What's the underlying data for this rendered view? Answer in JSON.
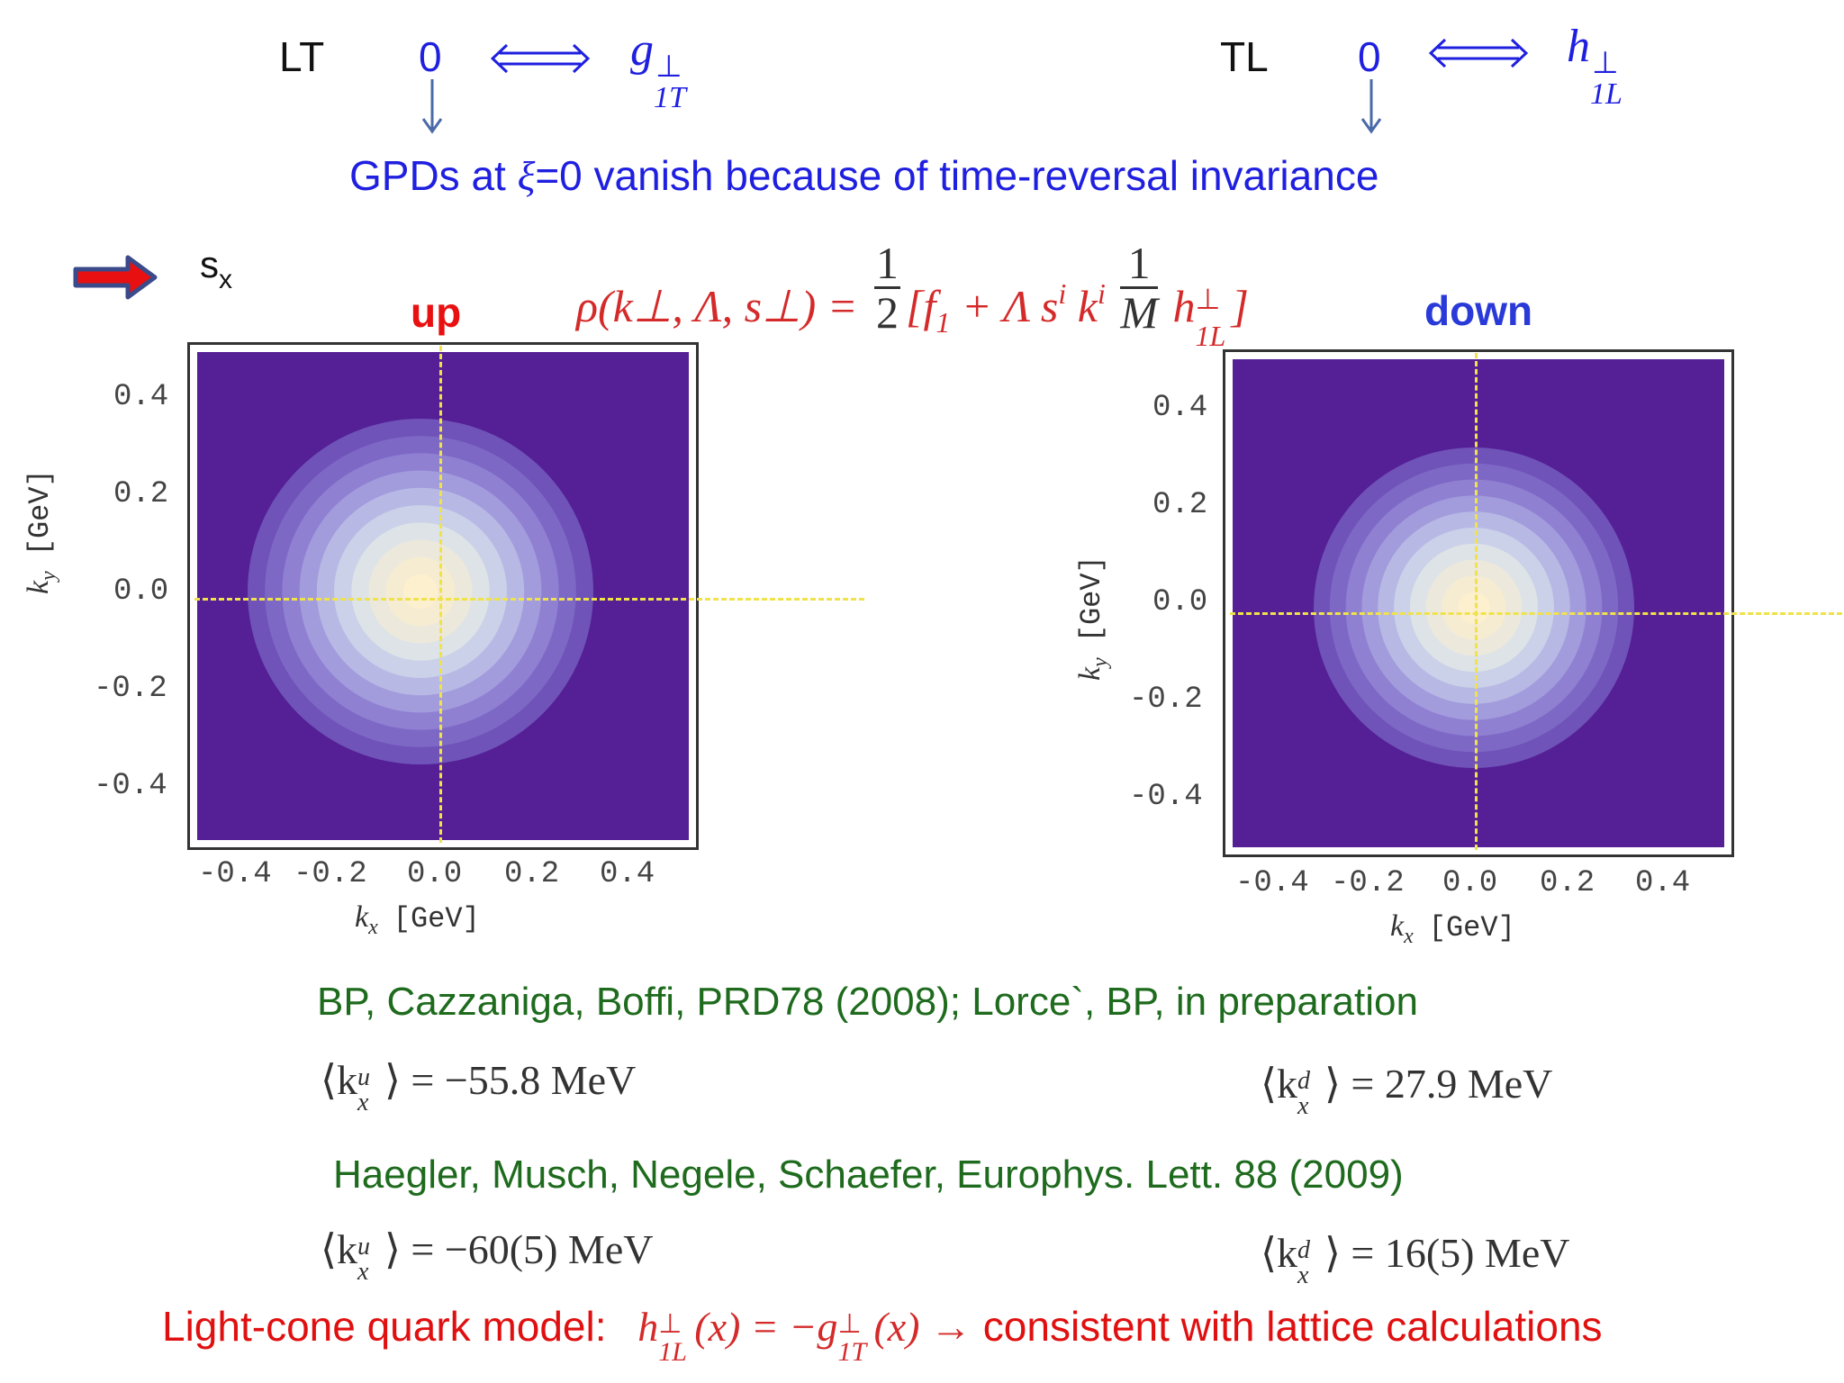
{
  "header": {
    "lt_label": "LT",
    "lt_zero": "0",
    "lt_func": "g",
    "lt_func_sup": "⊥",
    "lt_func_sub": "1T",
    "tl_label": "TL",
    "tl_zero": "0",
    "tl_func": "h",
    "tl_func_sup": "⊥",
    "tl_func_sub": "1L",
    "gpds_text_pre": "GPDs at ",
    "gpds_xi": "ξ",
    "gpds_text_post": "=0 vanish because of time-reversal invariance"
  },
  "legend": {
    "spin_label": "s",
    "spin_sub": "x"
  },
  "formula": {
    "lhs": "ρ(k⊥, Λ, s⊥) =",
    "half_num": "1",
    "half_den": "2",
    "bracket_open": "[f",
    "f_sub": "1",
    "plus_term": " + Λ s",
    "s_sup": "i",
    "k_term": " k",
    "k_sup": "i",
    "frac_num": "1",
    "frac_den": "M",
    "h_term": " h",
    "h_sup": "⊥",
    "h_sub": "1L",
    "bracket_close": "]"
  },
  "plots": {
    "up_title": "up",
    "down_title": "down",
    "x_axis_label": "k",
    "x_axis_sub": "x",
    "x_axis_unit": "[GeV]",
    "y_axis_label": "k",
    "y_axis_sub": "y",
    "y_axis_unit": "[GeV]",
    "x_ticks": [
      "-0.4",
      "-0.2",
      "0.0",
      "0.2",
      "0.4"
    ],
    "y_ticks": [
      "0.4",
      "0.2",
      "0.0",
      "-0.2",
      "-0.4"
    ]
  },
  "references": {
    "ref1": "BP, Cazzaniga, Boffi, PRD78 (2008); Lorce`, BP, in preparation",
    "ref1_up": "⟨k",
    "ref1_up_sup": "u",
    "ref1_up_sub": "x",
    "ref1_up_val": "⟩ = −55.8 MeV",
    "ref1_down": "⟨k",
    "ref1_down_sup": "d",
    "ref1_down_sub": "x",
    "ref1_down_val": "⟩ = 27.9 MeV",
    "ref2": "Haegler, Musch, Negele, Schaefer, Europhys. Lett. 88 (2009)",
    "ref2_up": "⟨k",
    "ref2_up_sup": "u",
    "ref2_up_sub": "x",
    "ref2_up_val": "⟩ = −60(5) MeV",
    "ref2_down": "⟨k",
    "ref2_down_sup": "d",
    "ref2_down_sub": "x",
    "ref2_down_val": "⟩ = 16(5) MeV"
  },
  "conclusion": {
    "prefix": "Light-cone quark model:",
    "math_h": "h",
    "math_h_sup": "⊥",
    "math_h_sub": "1L",
    "math_mid": "(x) = −g",
    "math_g_sup": "⊥",
    "math_g_sub": "1T",
    "math_end": "(x) →",
    "suffix": "consistent with lattice calculations"
  },
  "colors": {
    "heading_blue": "#1f1fe0",
    "reference_green": "#1e6b1e",
    "conclusion_red": "#e01010",
    "formula_red": "#d42a2a",
    "plot_background": "#551f96",
    "plot_center": "#fdf0cf",
    "crosshair": "#f0e24a",
    "arrow_fill": "#e81010",
    "arrow_outline": "#3a4a8a"
  }
}
